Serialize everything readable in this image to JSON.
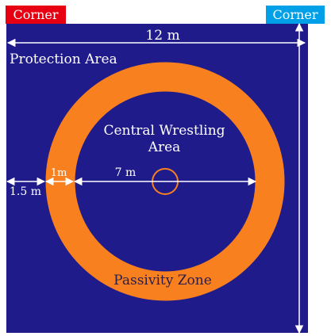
{
  "corners": {
    "left_label": "Corner",
    "left_color": "#e60012",
    "right_label": "Corner",
    "right_color": "#00a0e9"
  },
  "dimensions": {
    "width": "12 m",
    "height": "12 m",
    "central_diameter": "7 m",
    "passivity_width": "1m",
    "protection_width": "1.5 m"
  },
  "areas": {
    "protection": "Protection Area",
    "central_line1": "Central Wrestling",
    "central_line2": "Area",
    "passivity": "Passivity Zone"
  },
  "colors": {
    "mat": "#1f1b8a",
    "ring": "#f9801f",
    "arrow": "#ffffff"
  }
}
